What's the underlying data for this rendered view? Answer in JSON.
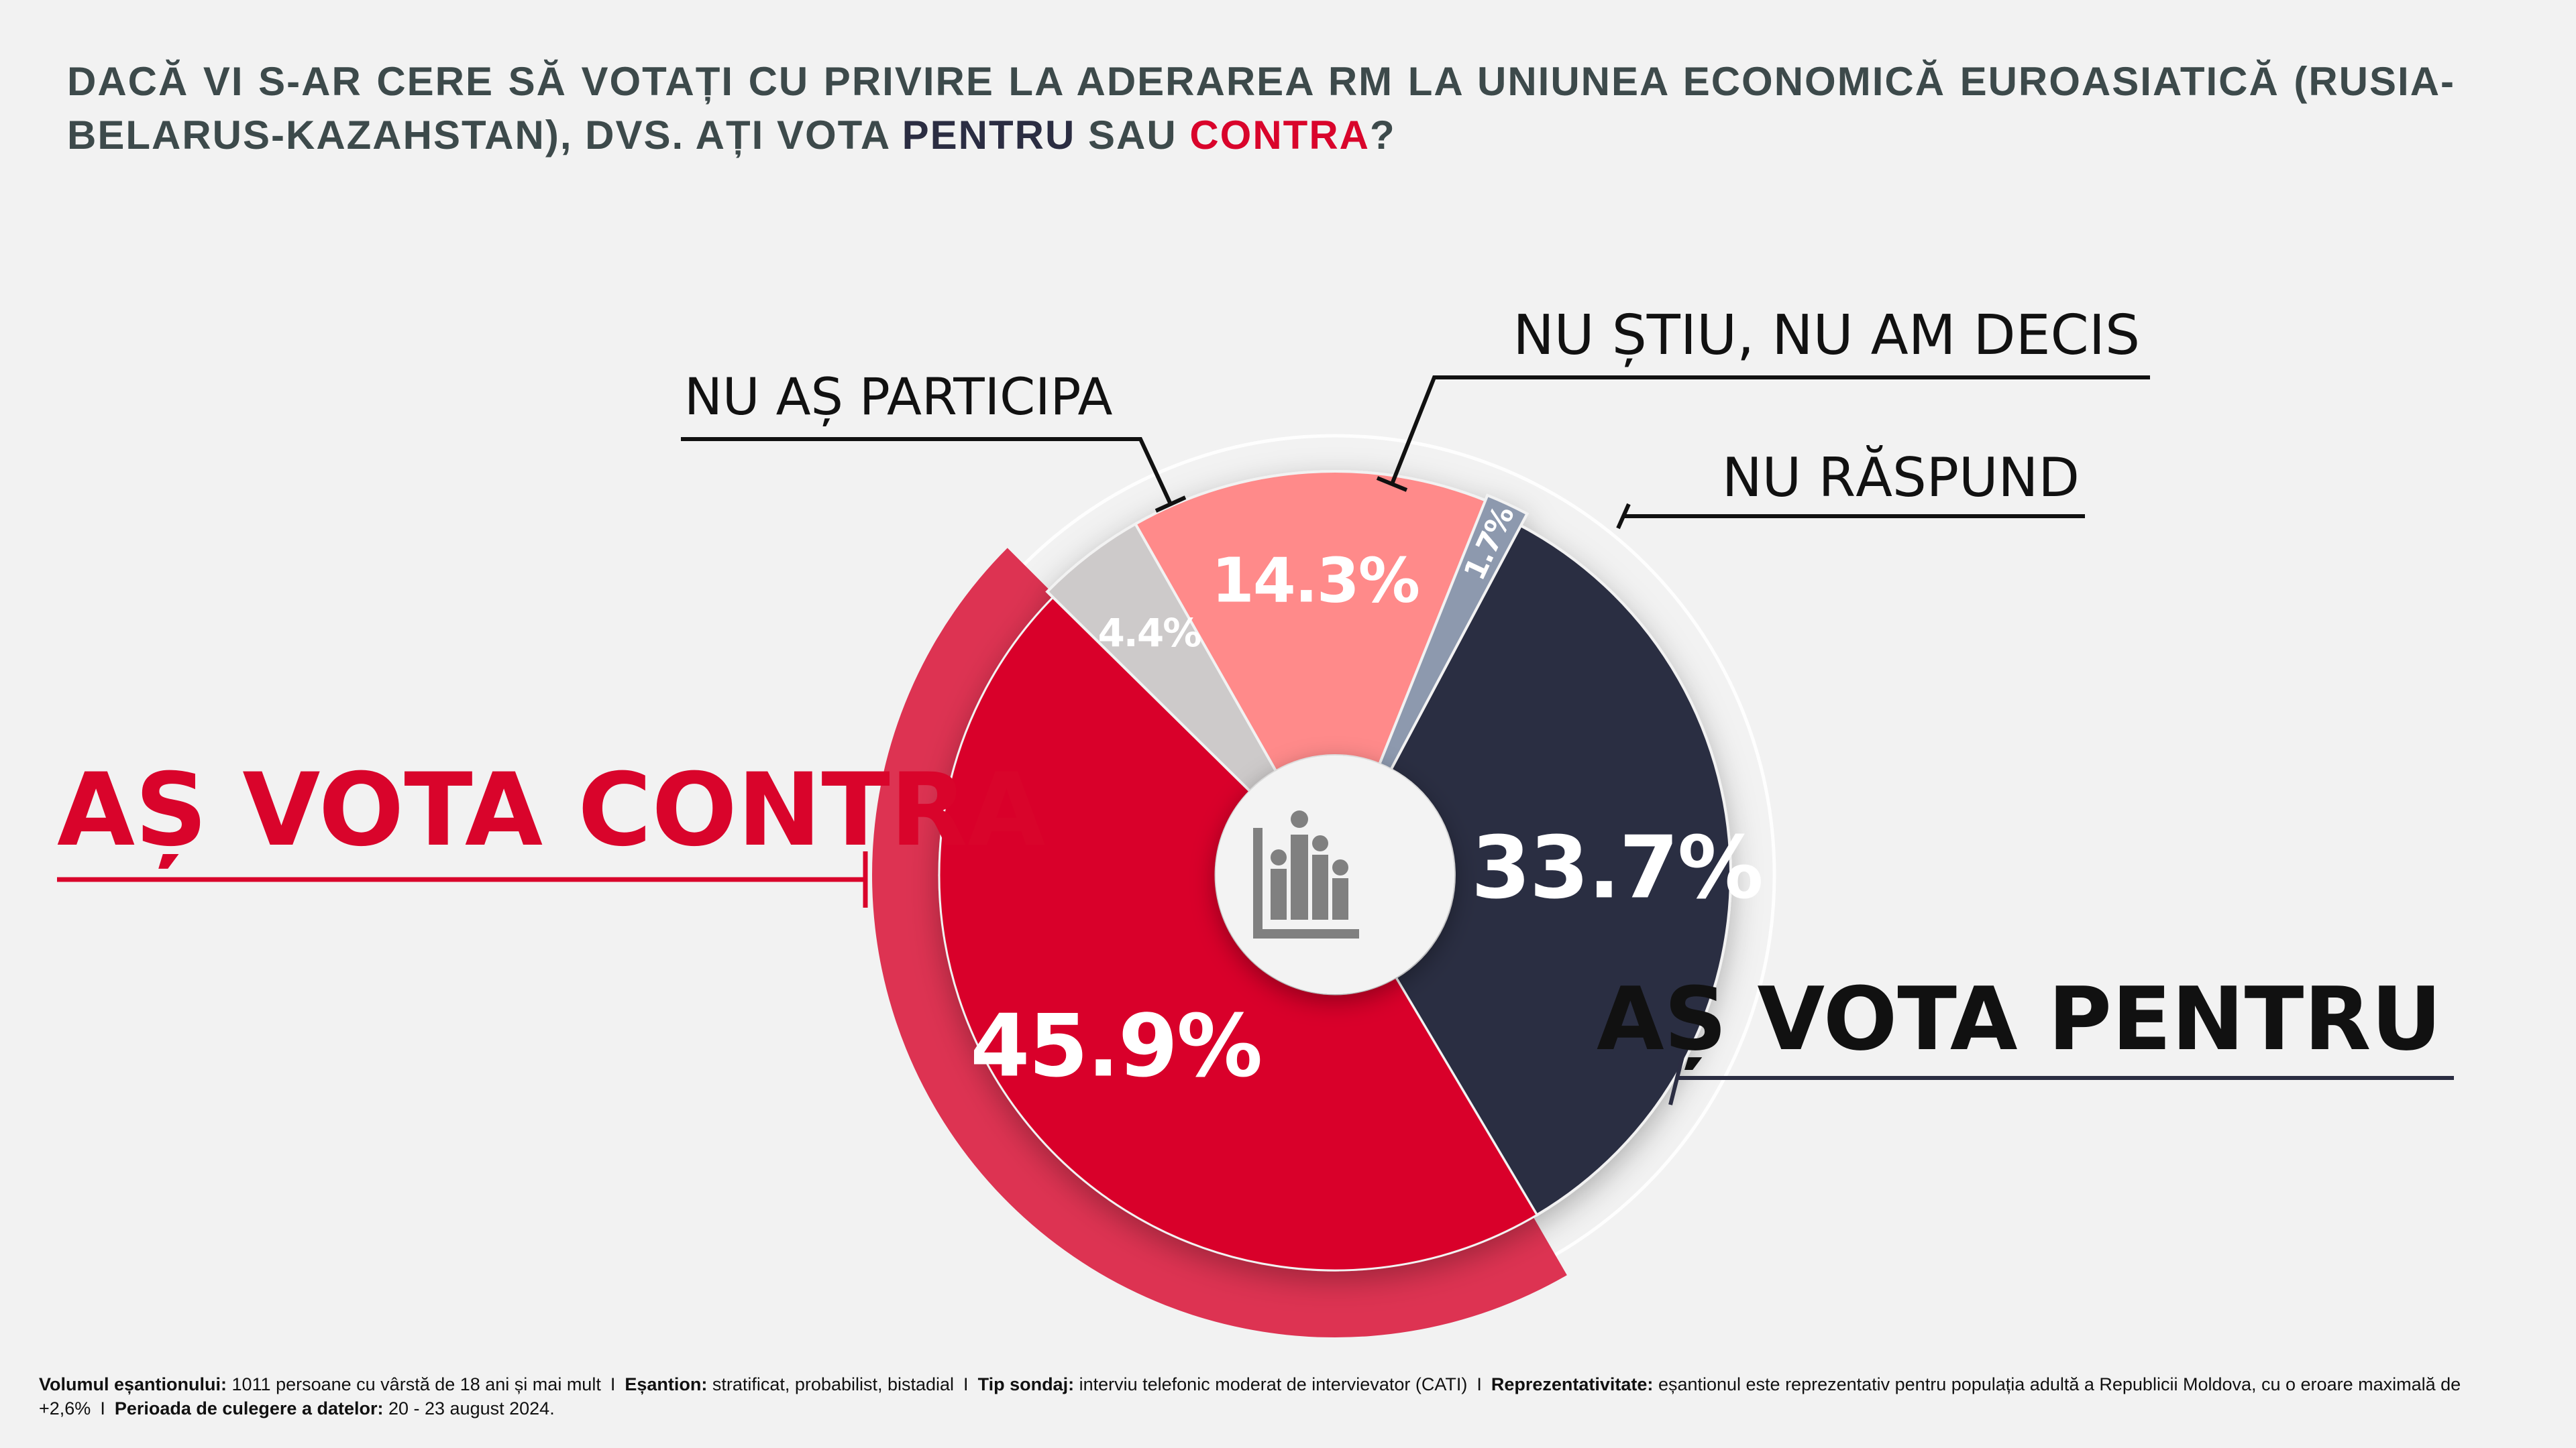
{
  "title": {
    "part1": "DACĂ VI S-AR CERE SĂ VOTAȚI CU PRIVIRE LA ADERAREA RM LA UNIUNEA ECONOMICĂ EUROASIATICĂ (RUSIA-BELARUS-KAZAHSTAN), DVS. AȚI VOTA ",
    "pentru": "PENTRU",
    "middle": " SAU ",
    "contra": "CONTRA",
    "end": "?"
  },
  "chart_data": {
    "type": "pie",
    "title": "DACĂ VI S-AR CERE SĂ VOTAȚI CU PRIVIRE LA ADERAREA RM LA UNIUNEA ECONOMICĂ EUROASIATICĂ (RUSIA-BELARUS-KAZAHSTAN), DVS. AȚI VOTA PENTRU SAU CONTRA?",
    "unit": "%",
    "slices": [
      {
        "label": "AȘ VOTA PENTRU",
        "value": 33.7,
        "value_label": "33.7%",
        "color": "#2b2d42"
      },
      {
        "label": "AȘ VOTA CONTRA",
        "value": 45.9,
        "value_label": "45.9%",
        "color": "#d9042b"
      },
      {
        "label": "NU AȘ PARTICIPA",
        "value": 4.4,
        "value_label": "4.4%",
        "color": "#cdcaca"
      },
      {
        "label": "NU ȘTIU, NU AM DECIS",
        "value": 14.3,
        "value_label": "14.3%",
        "color": "#ff8a8a"
      },
      {
        "label": "NU RĂSPUND",
        "value": 1.7,
        "value_label": "1.7%",
        "color": "#8d99ae"
      }
    ],
    "highlight_color": "#dd3352",
    "center_icon": "bar-chart-people-icon"
  },
  "footnote": {
    "sample_label": "Volumul eșantionului:",
    "sample_value": "1011 persoane cu vârstă de 18 ani și mai mult",
    "separator": "I",
    "type_label": "Eșantion:",
    "type_value": "stratificat, probabilist, bistadial",
    "survey_label": "Tip sondaj:",
    "survey_value": "interviu telefonic moderat de intervievator (CATI)",
    "repr_label": "Reprezentativitate:",
    "repr_value": "eșantionul este reprezentativ pentru populația adultă a Republicii Moldova, cu o eroare maximală de +2,6%",
    "period_label": "Perioada de culegere a datelor:",
    "period_value": "20 - 23 august 2024."
  }
}
